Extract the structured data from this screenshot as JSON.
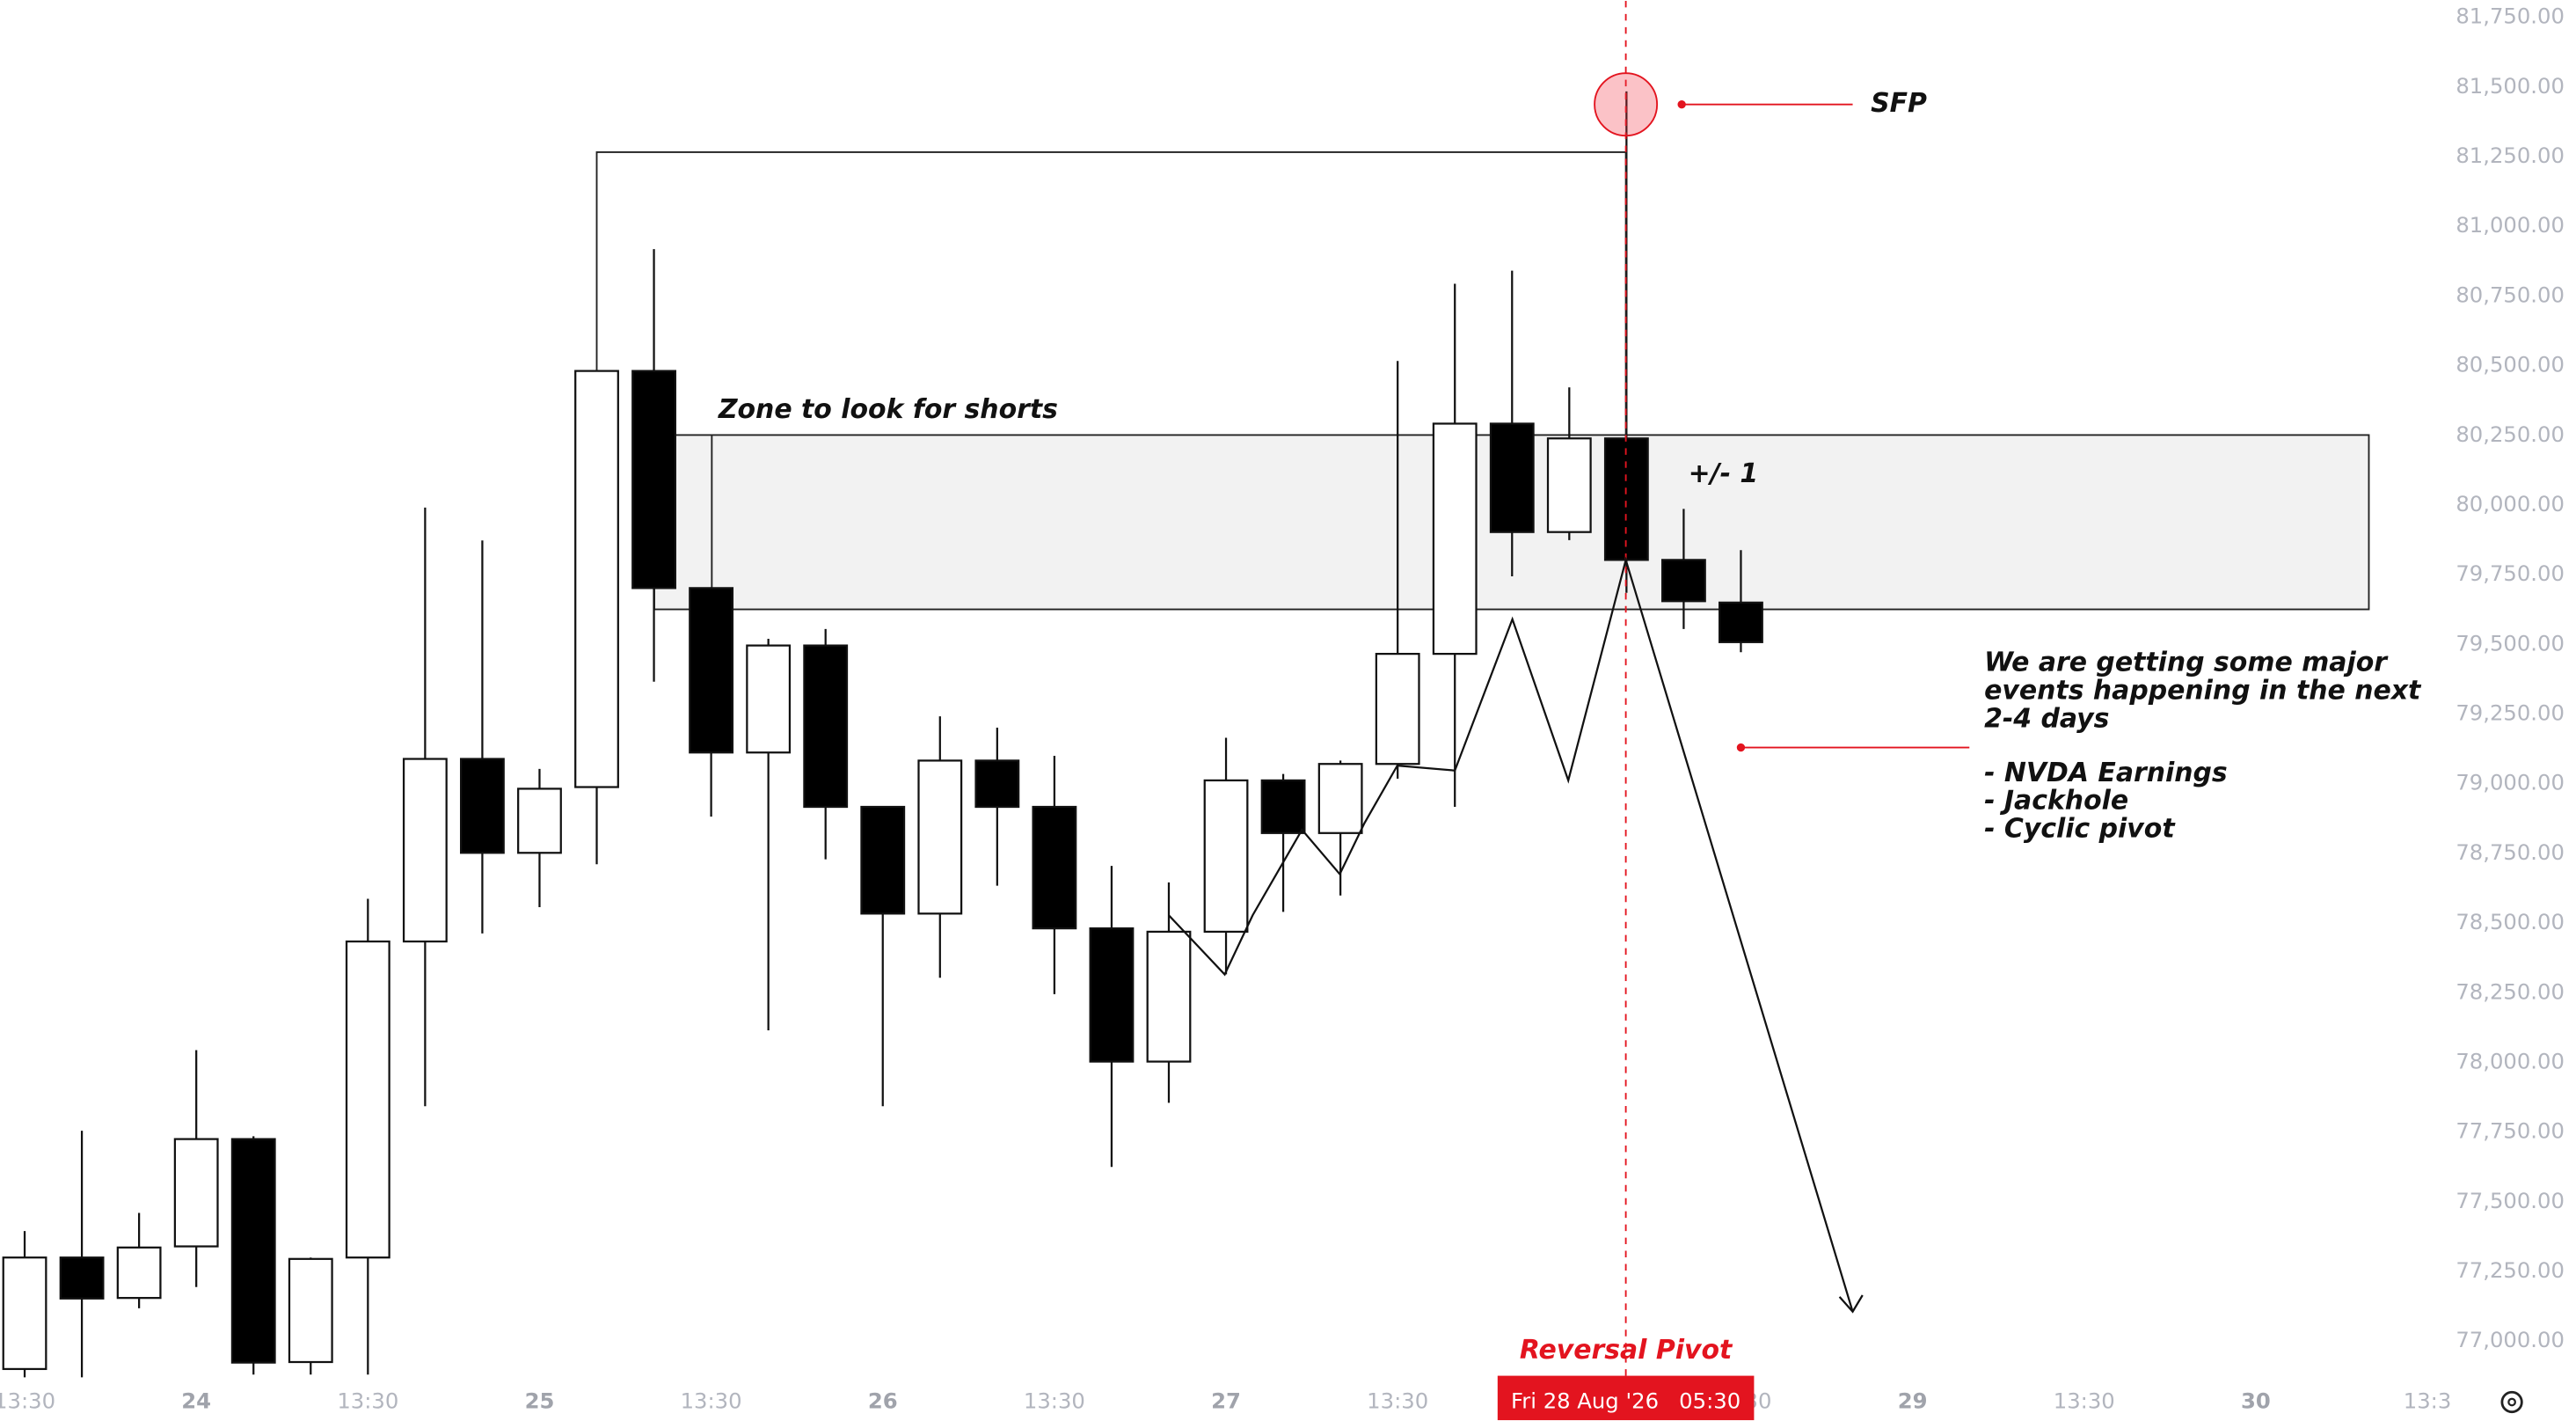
{
  "chart_data": {
    "type": "candlestick",
    "series": {
      "open": [
        76900,
        77300,
        77155,
        77340,
        77725,
        76925,
        77300,
        78434,
        79089,
        78752,
        78988,
        80481,
        79702,
        79112,
        79496,
        78917,
        78534,
        79083,
        78917,
        78481,
        78003,
        78469,
        79012,
        78823,
        79071,
        79466,
        80292,
        79903,
        80239,
        79803,
        79650
      ],
      "high": [
        77395,
        77755,
        77460,
        78044,
        77735,
        77300,
        78587,
        79991,
        79873,
        79053,
        80485,
        80918,
        79705,
        79520,
        79555,
        78920,
        79242,
        79201,
        79100,
        78705,
        78646,
        79165,
        79035,
        79083,
        80517,
        80794,
        80841,
        80422,
        81484,
        79986,
        79838
      ],
      "low": [
        76870,
        76870,
        77118,
        77194,
        76880,
        76880,
        76880,
        77843,
        78463,
        78557,
        78711,
        79366,
        78882,
        78115,
        78729,
        77843,
        78304,
        78634,
        78245,
        77625,
        77855,
        78316,
        78540,
        78599,
        79018,
        78917,
        79744,
        79874,
        79685,
        79555,
        79472
      ],
      "close": [
        77300,
        77153,
        77336,
        77725,
        76923,
        77295,
        78434,
        79089,
        78752,
        78982,
        80481,
        79702,
        79112,
        79496,
        78917,
        78534,
        79083,
        78917,
        78481,
        78003,
        78469,
        79012,
        78823,
        79071,
        79466,
        80292,
        79903,
        80239,
        79803,
        79655,
        79508
      ]
    },
    "up_color": "#ffffff",
    "down_color": "#000000",
    "ylim": [
      76864,
      81809
    ],
    "yticks": [
      {
        "value": 77000,
        "label": "77,000.00"
      },
      {
        "value": 77250,
        "label": "77,250.00"
      },
      {
        "value": 77500,
        "label": "77,500.00"
      },
      {
        "value": 77750,
        "label": "77,750.00"
      },
      {
        "value": 78000,
        "label": "78,000.00"
      },
      {
        "value": 78250,
        "label": "78,250.00"
      },
      {
        "value": 78500,
        "label": "78,500.00"
      },
      {
        "value": 78750,
        "label": "78,750.00"
      },
      {
        "value": 79000,
        "label": "79,000.00"
      },
      {
        "value": 79250,
        "label": "79,250.00"
      },
      {
        "value": 79500,
        "label": "79,500.00"
      },
      {
        "value": 79750,
        "label": "79,750.00"
      },
      {
        "value": 80000,
        "label": "80,000.00"
      },
      {
        "value": 80250,
        "label": "80,250.00"
      },
      {
        "value": 80500,
        "label": "80,500.00"
      },
      {
        "value": 80750,
        "label": "80,750.00"
      },
      {
        "value": 81000,
        "label": "81,000.00"
      },
      {
        "value": 81250,
        "label": "81,250.00"
      },
      {
        "value": 81500,
        "label": "81,500.00"
      },
      {
        "value": 81750,
        "label": "81,750.00"
      }
    ],
    "xtick_labels": [
      "13:30",
      "24",
      "13:30",
      "25",
      "13:30",
      "26",
      "13:30",
      "27",
      "13:30",
      "",
      "13:30",
      "29",
      "13:30",
      "30",
      "13:3"
    ],
    "annotations": {
      "sfp": "SFP",
      "zone": "Zone to look for shorts",
      "plus_minus": "+/- 1",
      "note": [
        "We are getting some major",
        "events happening in the next",
        "2-4 days",
        "- NVDA Earnings",
        "- Jackhole",
        "- Cyclic pivot"
      ],
      "pivot": "Reversal Pivot",
      "cursor_label": "Fri 28 Aug '26   05:30"
    }
  }
}
